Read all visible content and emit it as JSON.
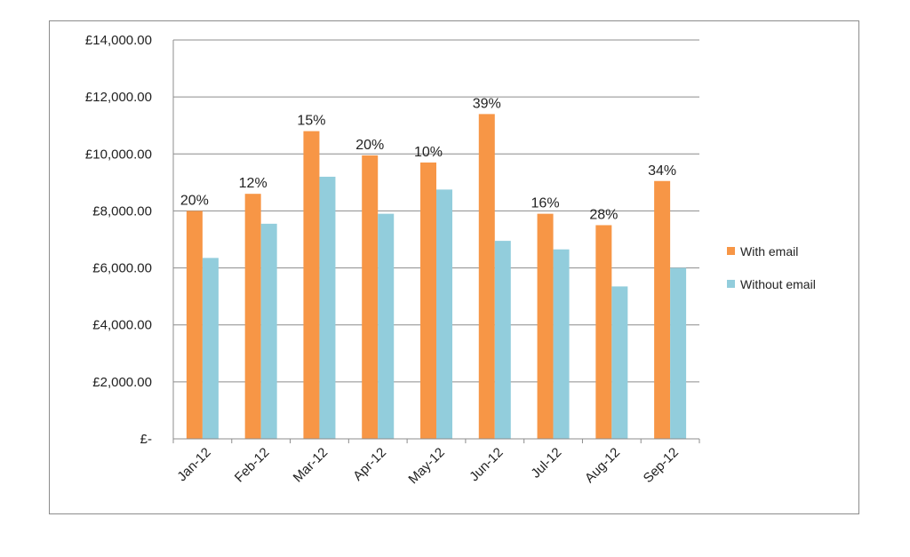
{
  "chart_data": {
    "type": "bar",
    "categories": [
      "Jan-12",
      "Feb-12",
      "Mar-12",
      "Apr-12",
      "May-12",
      "Jun-12",
      "Jul-12",
      "Aug-12",
      "Sep-12"
    ],
    "series": [
      {
        "name": "With email",
        "color": "#F79646",
        "values": [
          8000,
          8600,
          10800,
          9950,
          9700,
          11400,
          7900,
          7500,
          9050
        ],
        "data_labels": [
          "20%",
          "12%",
          "15%",
          "20%",
          "10%",
          "39%",
          "16%",
          "28%",
          "34%"
        ]
      },
      {
        "name": "Without email",
        "color": "#92CDDC",
        "values": [
          6350,
          7550,
          9200,
          7900,
          8750,
          6950,
          6650,
          5350,
          6000
        ]
      }
    ],
    "y_ticks": [
      0,
      2000,
      4000,
      6000,
      8000,
      10000,
      12000,
      14000
    ],
    "y_tick_labels": [
      "£-",
      "£2,000.00",
      "£4,000.00",
      "£6,000.00",
      "£8,000.00",
      "£10,000.00",
      "£12,000.00",
      "£14,000.00"
    ],
    "ylim": [
      0,
      14000
    ],
    "grid": true,
    "legend_position": "right",
    "title": "",
    "xlabel": "",
    "ylabel": ""
  }
}
